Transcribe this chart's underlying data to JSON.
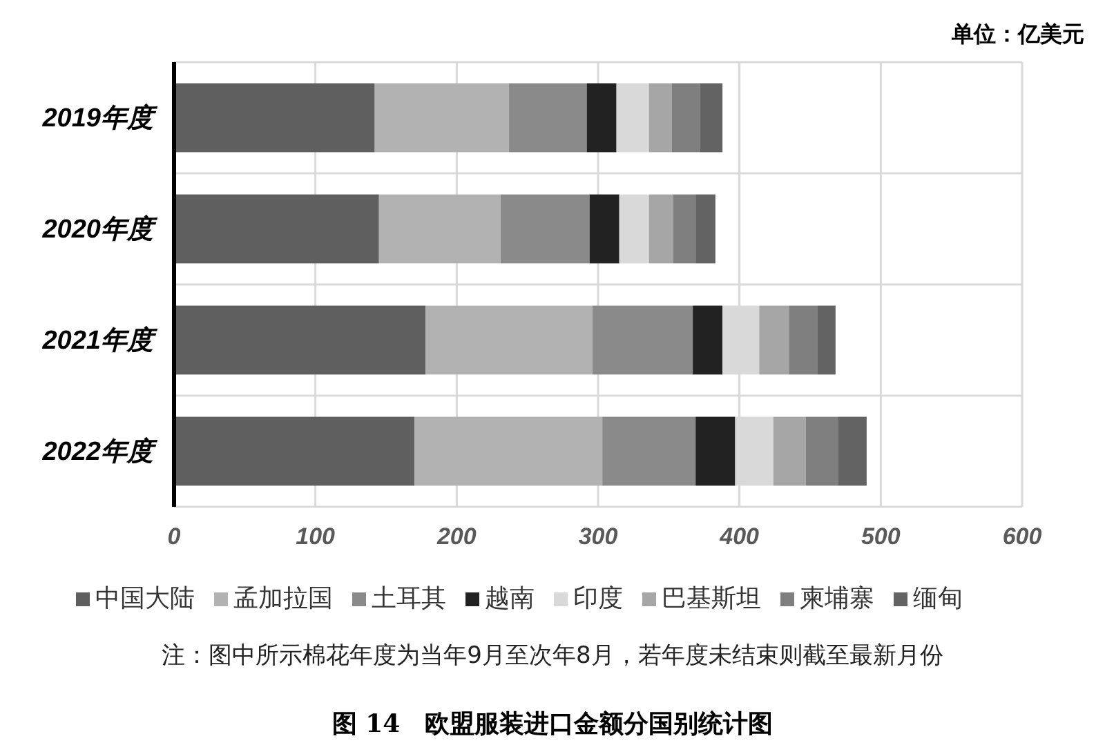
{
  "chart_data": {
    "type": "bar",
    "orientation": "horizontal",
    "stacked": true,
    "title": "图 14　欧盟服装进口金额分国别统计图",
    "annotations": [
      "单位：亿美元",
      "注：图中所示棉花年度为当年9月至次年8月，若年度未结束则截至最新月份"
    ],
    "categories": [
      "2019年度",
      "2020年度",
      "2021年度",
      "2022年度"
    ],
    "series": [
      {
        "name": "中国大陆",
        "color": "#5f5f5f",
        "values": [
          142,
          145,
          178,
          170
        ]
      },
      {
        "name": "孟加拉国",
        "color": "#b2b2b2",
        "values": [
          95,
          86,
          118,
          133
        ]
      },
      {
        "name": "土耳其",
        "color": "#8a8a8a",
        "values": [
          55,
          63,
          71,
          66
        ]
      },
      {
        "name": "越南",
        "color": "#222222",
        "values": [
          21,
          21,
          21,
          28
        ]
      },
      {
        "name": "印度",
        "color": "#d9d9d9",
        "values": [
          23,
          21,
          26,
          27
        ]
      },
      {
        "name": "巴基斯坦",
        "color": "#a6a6a6",
        "values": [
          16,
          17,
          21,
          23
        ]
      },
      {
        "name": "柬埔寨",
        "color": "#7f7f7f",
        "values": [
          20,
          16,
          20,
          23
        ]
      },
      {
        "name": "缅甸",
        "color": "#636363",
        "values": [
          16,
          14,
          13,
          20
        ]
      }
    ],
    "xlim": [
      0,
      600
    ],
    "xticks": [
      0,
      100,
      200,
      300,
      400,
      500,
      600
    ],
    "grid": true,
    "legend": "bottom"
  }
}
